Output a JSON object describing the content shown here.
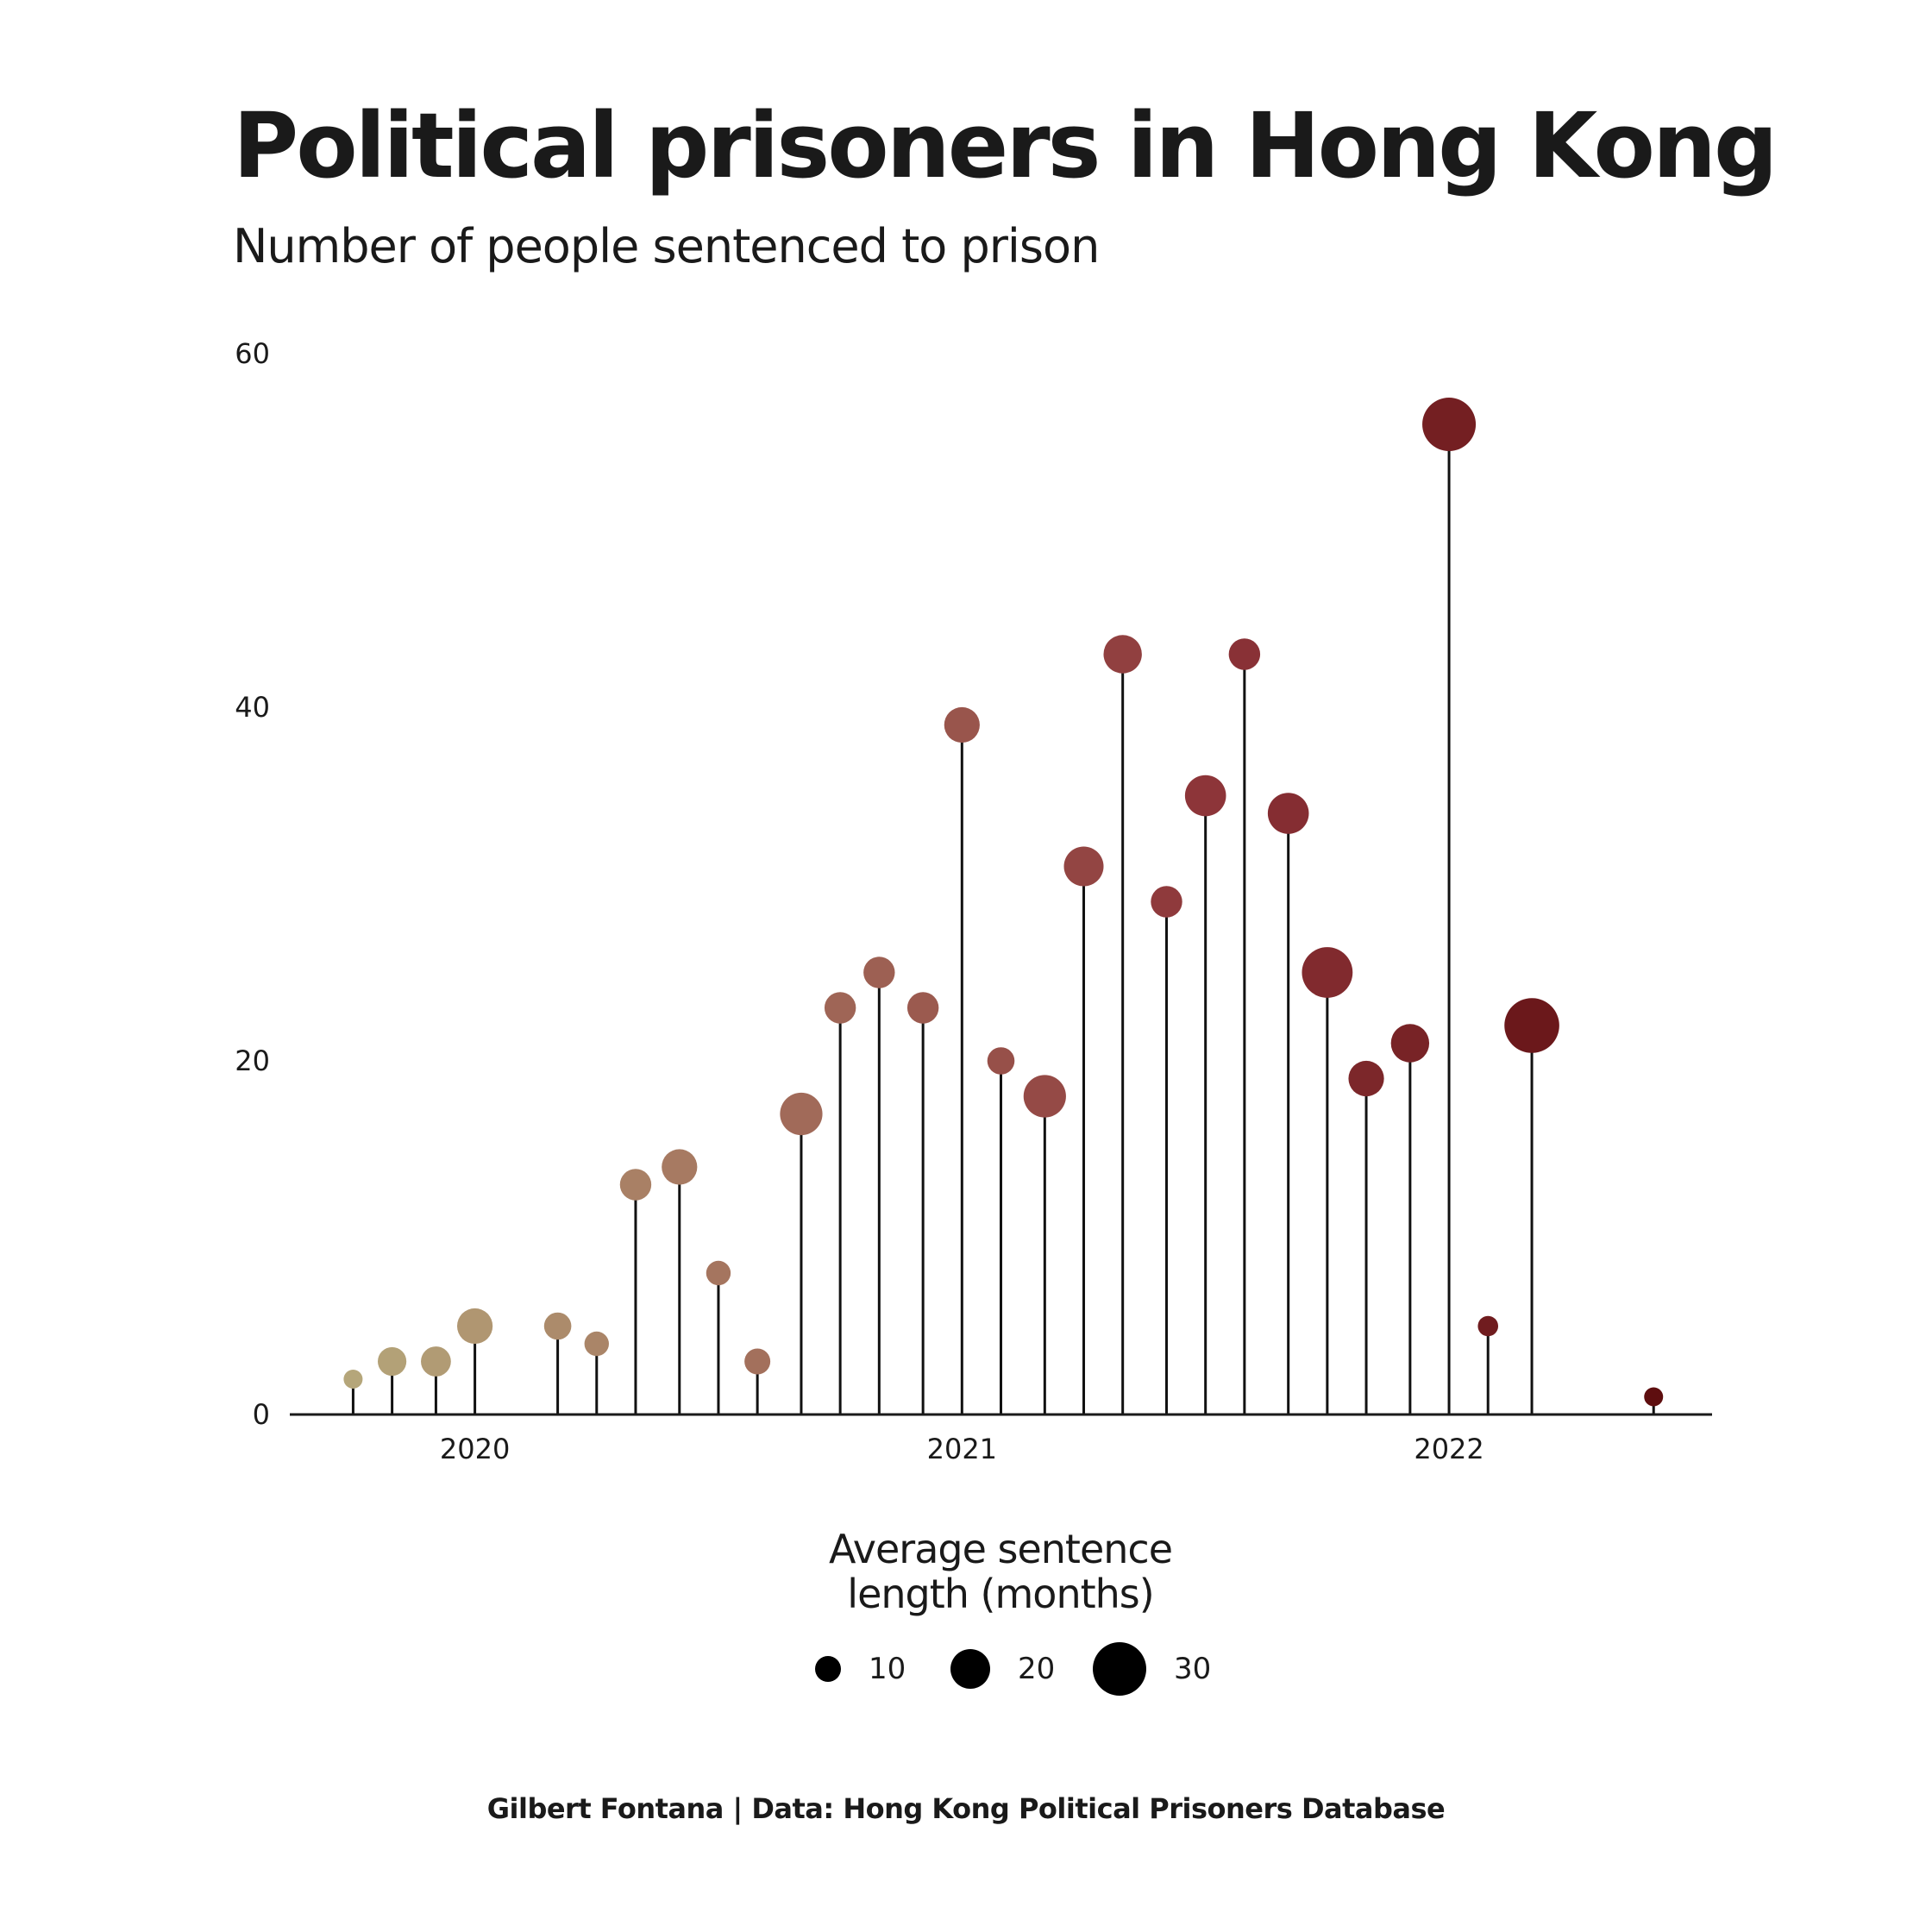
{
  "chart_data": {
    "type": "lollipop",
    "title": "Political prisoners in Hong Kong",
    "subtitle": "Number of people sentenced to prison",
    "xlabel": "",
    "ylabel": "",
    "ylim": [
      0,
      60
    ],
    "y_ticks": [
      "0",
      "20",
      "40",
      "60"
    ],
    "x_ticks": [
      {
        "label": "2020",
        "value": 2020.0
      },
      {
        "label": "2021",
        "value": 2021.0
      },
      {
        "label": "2022",
        "value": 2022.0
      }
    ],
    "xlim": [
      2019.62,
      2022.54
    ],
    "grid": false,
    "legend": {
      "title": "Average sentence\nlength (months)",
      "placement": "bottom",
      "items": [
        {
          "label": "10",
          "value": 10
        },
        {
          "label": "20",
          "value": 20
        },
        {
          "label": "30",
          "value": 30
        }
      ]
    },
    "color_scale": [
      "#b5a67a",
      "#a26c5a",
      "#8c3338",
      "#5e0e0f"
    ],
    "points": [
      {
        "x": 2019.75,
        "y": 2,
        "sentence": 5
      },
      {
        "x": 2019.83,
        "y": 3,
        "sentence": 12
      },
      {
        "x": 2019.92,
        "y": 3,
        "sentence": 13
      },
      {
        "x": 2020.0,
        "y": 5,
        "sentence": 17
      },
      {
        "x": 2020.17,
        "y": 5,
        "sentence": 11
      },
      {
        "x": 2020.25,
        "y": 4,
        "sentence": 9
      },
      {
        "x": 2020.33,
        "y": 13,
        "sentence": 14
      },
      {
        "x": 2020.42,
        "y": 14,
        "sentence": 17
      },
      {
        "x": 2020.5,
        "y": 8,
        "sentence": 9
      },
      {
        "x": 2020.58,
        "y": 3,
        "sentence": 10
      },
      {
        "x": 2020.67,
        "y": 17,
        "sentence": 22
      },
      {
        "x": 2020.75,
        "y": 23,
        "sentence": 14
      },
      {
        "x": 2020.83,
        "y": 25,
        "sentence": 14
      },
      {
        "x": 2020.92,
        "y": 23,
        "sentence": 14
      },
      {
        "x": 2021.0,
        "y": 39,
        "sentence": 17
      },
      {
        "x": 2021.08,
        "y": 20,
        "sentence": 11
      },
      {
        "x": 2021.17,
        "y": 18,
        "sentence": 22
      },
      {
        "x": 2021.25,
        "y": 31,
        "sentence": 20
      },
      {
        "x": 2021.33,
        "y": 43,
        "sentence": 19
      },
      {
        "x": 2021.42,
        "y": 29,
        "sentence": 14
      },
      {
        "x": 2021.5,
        "y": 35,
        "sentence": 21
      },
      {
        "x": 2021.58,
        "y": 43,
        "sentence": 14
      },
      {
        "x": 2021.67,
        "y": 34,
        "sentence": 21
      },
      {
        "x": 2021.75,
        "y": 25,
        "sentence": 28
      },
      {
        "x": 2021.83,
        "y": 19,
        "sentence": 17
      },
      {
        "x": 2021.92,
        "y": 21,
        "sentence": 19
      },
      {
        "x": 2022.0,
        "y": 56,
        "sentence": 30
      },
      {
        "x": 2022.08,
        "y": 5,
        "sentence": 6
      },
      {
        "x": 2022.17,
        "y": 22,
        "sentence": 31
      },
      {
        "x": 2022.42,
        "y": 1,
        "sentence": 5
      }
    ]
  },
  "caption": "Gilbert Fontana | Data: Hong Kong Political Prisoners Database"
}
